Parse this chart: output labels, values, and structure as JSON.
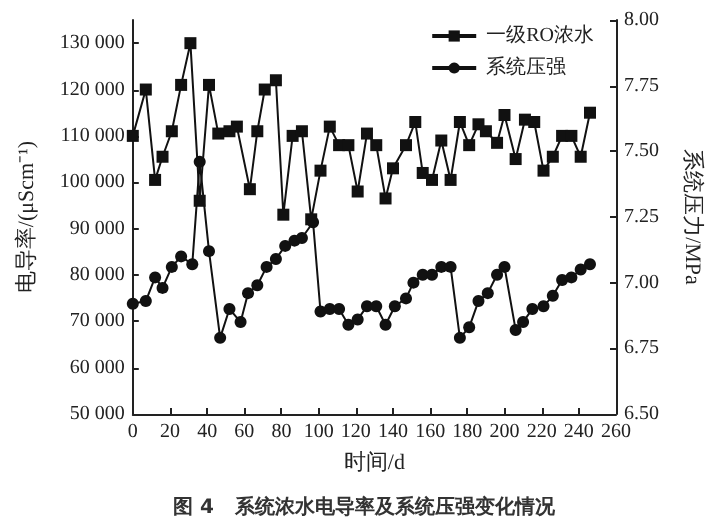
{
  "chart_data": {
    "type": "line",
    "title": "图 4   系统浓水电导率及系统压强变化情况",
    "xlabel": "时间/d",
    "ylabel": "电导率/(μScm⁻¹)",
    "y2label": "系统压力/MPa",
    "xlim": [
      0,
      260
    ],
    "xticks": [
      0,
      20,
      40,
      60,
      80,
      100,
      120,
      140,
      160,
      180,
      200,
      220,
      240,
      260
    ],
    "ylim": [
      50000,
      135000
    ],
    "yticks": [
      {
        "value": 50000,
        "label": "50 000"
      },
      {
        "value": 60000,
        "label": "60 000"
      },
      {
        "value": 70000,
        "label": "70 000"
      },
      {
        "value": 80000,
        "label": "80 000"
      },
      {
        "value": 90000,
        "label": "90 000"
      },
      {
        "value": 100000,
        "label": "100 000"
      },
      {
        "value": 110000,
        "label": "110 000"
      },
      {
        "value": 120000,
        "label": "120 000"
      },
      {
        "value": 130000,
        "label": "130 000"
      }
    ],
    "y2lim": [
      6.5,
      8.0
    ],
    "y2ticks": [
      {
        "value": 6.5,
        "label": "6.50"
      },
      {
        "value": 6.75,
        "label": "6.75"
      },
      {
        "value": 7.0,
        "label": "7.00"
      },
      {
        "value": 7.25,
        "label": "7.25"
      },
      {
        "value": 7.5,
        "label": "7.50"
      },
      {
        "value": 7.75,
        "label": "7.75"
      },
      {
        "value": 8.0,
        "label": "8.00"
      }
    ],
    "grid": false,
    "legend": "top right",
    "series": [
      {
        "name": "一级RO浓水",
        "color": "#111111",
        "marker": "square",
        "x": [
          0,
          7,
          12,
          16,
          21,
          26,
          31,
          36,
          41,
          46,
          52,
          56,
          63,
          67,
          71,
          77,
          81,
          86,
          91,
          96,
          101,
          106,
          111,
          116,
          121,
          126,
          131,
          136,
          140,
          147,
          152,
          156,
          161,
          166,
          171,
          176,
          181,
          186,
          190,
          196,
          200,
          206,
          211,
          216,
          221,
          226,
          231,
          236,
          241,
          246
        ],
        "values": [
          110000,
          120000,
          100500,
          105500,
          111000,
          121000,
          130000,
          96000,
          121000,
          110500,
          111000,
          112000,
          98500,
          111000,
          120000,
          122000,
          93000,
          110000,
          111000,
          92000,
          102500,
          112000,
          108000,
          108000,
          98000,
          110500,
          108000,
          96500,
          103000,
          108000,
          113000,
          102000,
          100500,
          109000,
          100500,
          113000,
          108000,
          112500,
          111000,
          108500,
          114500,
          105000,
          113500,
          113000,
          102500,
          105500,
          110000,
          110000,
          105500,
          115000
        ]
      },
      {
        "name": "系统压强",
        "color": "#111111",
        "marker": "circle",
        "axis": "y2",
        "x": [
          0,
          7,
          12,
          16,
          21,
          26,
          32,
          36,
          41,
          47,
          52,
          58,
          62,
          67,
          72,
          77,
          82,
          87,
          91,
          97,
          101,
          106,
          111,
          116,
          121,
          126,
          131,
          136,
          141,
          147,
          151,
          156,
          161,
          166,
          171,
          176,
          181,
          186,
          191,
          196,
          200,
          206,
          210,
          215,
          221,
          226,
          231,
          236,
          241,
          246
        ],
        "values": [
          6.92,
          6.93,
          7.02,
          6.98,
          7.06,
          7.1,
          7.07,
          7.46,
          7.12,
          6.79,
          6.9,
          6.85,
          6.96,
          6.99,
          7.06,
          7.09,
          7.14,
          7.16,
          7.17,
          7.23,
          6.89,
          6.9,
          6.9,
          6.84,
          6.86,
          6.91,
          6.91,
          6.84,
          6.91,
          6.94,
          7.0,
          7.03,
          7.03,
          7.06,
          7.06,
          6.79,
          6.83,
          6.93,
          6.96,
          7.03,
          7.06,
          6.82,
          6.85,
          6.9,
          6.91,
          6.95,
          7.01,
          7.02,
          7.05,
          7.07
        ]
      }
    ]
  }
}
